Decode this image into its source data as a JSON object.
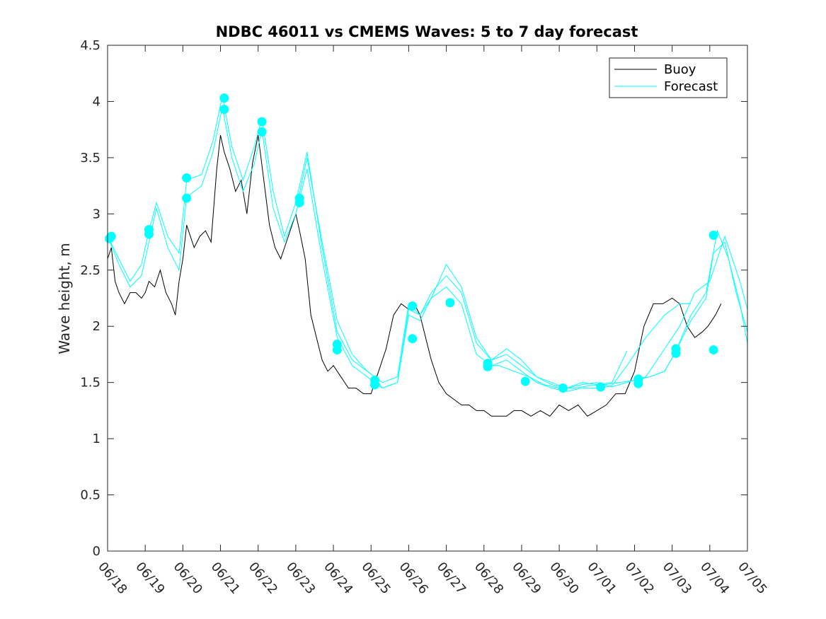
{
  "chart_data": {
    "type": "line",
    "title": "NDBC 46011 vs CMEMS Waves: 5 to 7 day forecast",
    "xlabel": "",
    "ylabel": "Wave height, m",
    "ylim": [
      0,
      4.5
    ],
    "xlim": [
      "06/18",
      "07/05"
    ],
    "x_ticks": [
      "06/18",
      "06/19",
      "06/20",
      "06/21",
      "06/22",
      "06/23",
      "06/24",
      "06/25",
      "06/26",
      "06/27",
      "06/28",
      "06/29",
      "06/30",
      "07/01",
      "07/02",
      "07/03",
      "07/04",
      "07/05"
    ],
    "y_ticks": [
      "0",
      "0.5",
      "1",
      "1.5",
      "2",
      "2.5",
      "3",
      "3.5",
      "4",
      "4.5"
    ],
    "legend": {
      "placement": "top-right",
      "entries": [
        "Buoy",
        "Forecast"
      ]
    },
    "colors": {
      "buoy": "#000000",
      "forecast": "#00ffff",
      "marker": "#00ffff",
      "axis": "#262626"
    },
    "series": [
      {
        "name": "Buoy",
        "x_day_index": [
          0,
          0.1,
          0.2,
          0.3,
          0.45,
          0.6,
          0.75,
          0.9,
          1.0,
          1.1,
          1.25,
          1.4,
          1.55,
          1.7,
          1.8,
          1.9,
          2.0,
          2.1,
          2.3,
          2.45,
          2.6,
          2.75,
          2.9,
          3.0,
          3.1,
          3.25,
          3.4,
          3.55,
          3.7,
          3.85,
          4.0,
          4.15,
          4.3,
          4.45,
          4.6,
          4.75,
          4.9,
          5.0,
          5.1,
          5.25,
          5.4,
          5.55,
          5.7,
          5.85,
          6.0,
          6.2,
          6.4,
          6.6,
          6.8,
          7.0,
          7.2,
          7.4,
          7.6,
          7.8,
          8.0,
          8.15,
          8.3,
          8.45,
          8.6,
          8.8,
          9.0,
          9.2,
          9.4,
          9.6,
          9.8,
          10.0,
          10.2,
          10.4,
          10.6,
          10.8,
          11.0,
          11.25,
          11.5,
          11.75,
          12.0,
          12.25,
          12.5,
          12.75,
          13.0,
          13.25,
          13.5,
          13.75,
          14.0,
          14.25,
          14.5,
          14.75,
          15.0,
          15.2,
          15.4,
          15.6,
          15.8,
          15.95,
          16.05,
          16.15,
          16.3
        ],
        "values": [
          2.6,
          2.7,
          2.4,
          2.3,
          2.2,
          2.3,
          2.3,
          2.25,
          2.3,
          2.4,
          2.35,
          2.5,
          2.3,
          2.2,
          2.1,
          2.4,
          2.6,
          2.9,
          2.7,
          2.8,
          2.85,
          2.75,
          3.4,
          3.7,
          3.55,
          3.4,
          3.2,
          3.3,
          3.0,
          3.45,
          3.7,
          3.3,
          2.9,
          2.7,
          2.6,
          2.75,
          2.9,
          3.0,
          2.85,
          2.6,
          2.1,
          1.9,
          1.7,
          1.6,
          1.65,
          1.55,
          1.45,
          1.45,
          1.4,
          1.4,
          1.6,
          1.8,
          2.1,
          2.2,
          2.15,
          2.2,
          2.1,
          1.9,
          1.7,
          1.5,
          1.4,
          1.35,
          1.3,
          1.3,
          1.25,
          1.25,
          1.2,
          1.2,
          1.2,
          1.25,
          1.25,
          1.2,
          1.25,
          1.2,
          1.3,
          1.25,
          1.3,
          1.2,
          1.25,
          1.3,
          1.4,
          1.4,
          1.6,
          2.0,
          2.2,
          2.2,
          2.25,
          2.2,
          2.0,
          1.9,
          1.95,
          2.0,
          2.05,
          2.1,
          2.2
        ]
      },
      {
        "name": "Forecast",
        "runs": [
          {
            "x_day_index": [
              0,
              0.3,
              0.6,
              0.9,
              1.1,
              1.3,
              1.6,
              1.9,
              2.1,
              2.5,
              2.8,
              3.05,
              3.3,
              3.6,
              3.9,
              4.1,
              4.4,
              4.7,
              5.0,
              5.3,
              5.7,
              6.1,
              6.5,
              6.9,
              7.3,
              7.7,
              8.0,
              8.3,
              8.6,
              9.0,
              9.4,
              9.8,
              10.2,
              10.6,
              11.0,
              11.4,
              11.8,
              12.2,
              12.6,
              13.0,
              13.4,
              13.8
            ],
            "values": [
              2.8,
              2.6,
              2.4,
              2.55,
              2.85,
              3.1,
              2.8,
              2.65,
              3.3,
              3.35,
              3.65,
              4.05,
              3.6,
              3.3,
              3.6,
              3.85,
              3.2,
              2.8,
              3.1,
              3.55,
              2.7,
              1.95,
              1.7,
              1.6,
              1.5,
              1.55,
              2.2,
              2.1,
              2.3,
              2.45,
              2.3,
              1.85,
              1.7,
              1.75,
              1.65,
              1.55,
              1.5,
              1.45,
              1.5,
              1.48,
              1.5,
              1.78
            ]
          },
          {
            "x_day_index": [
              0,
              0.3,
              0.6,
              0.9,
              1.1,
              1.3,
              1.6,
              1.9,
              2.1,
              2.5,
              2.8,
              3.05,
              3.3,
              3.6,
              3.9,
              4.1,
              4.4,
              4.7,
              5.0,
              5.3,
              5.7,
              6.1,
              6.5,
              6.9,
              7.3,
              7.7,
              8.0,
              8.3,
              8.6,
              9.0,
              9.4,
              9.8,
              10.2,
              10.6,
              11.0,
              11.4,
              11.8,
              12.2,
              12.6,
              13.0,
              13.4,
              13.8,
              14.3,
              14.8,
              15.2,
              15.5
            ],
            "values": [
              2.8,
              2.55,
              2.35,
              2.45,
              2.75,
              3.05,
              2.7,
              2.5,
              3.15,
              3.25,
              3.55,
              3.95,
              3.5,
              3.2,
              3.45,
              3.75,
              3.05,
              2.75,
              3.0,
              3.4,
              2.6,
              1.9,
              1.65,
              1.55,
              1.45,
              1.5,
              2.1,
              2.05,
              2.25,
              2.35,
              2.2,
              1.75,
              1.65,
              1.7,
              1.6,
              1.5,
              1.45,
              1.42,
              1.45,
              1.45,
              1.47,
              1.65,
              1.9,
              2.1,
              2.2,
              2.2
            ]
          },
          {
            "x_day_index": [
              5.05,
              5.3,
              5.7,
              6.1,
              6.5,
              6.9,
              7.1,
              7.3,
              7.7,
              8.0,
              8.3,
              8.6,
              9.0,
              9.4,
              9.8,
              10.2,
              10.6,
              11.0,
              11.4,
              11.8,
              12.2,
              12.6,
              13.0,
              13.4,
              13.8,
              14.3,
              14.8,
              15.2,
              15.6,
              16.0,
              16.4,
              16.8,
              17.0
            ],
            "values": [
              3.1,
              3.5,
              2.75,
              2.05,
              1.75,
              1.6,
              1.55,
              1.45,
              1.5,
              2.15,
              2.1,
              2.25,
              2.55,
              2.35,
              1.9,
              1.7,
              1.8,
              1.7,
              1.55,
              1.48,
              1.45,
              1.48,
              1.5,
              1.46,
              1.5,
              1.55,
              1.8,
              2.0,
              2.3,
              2.4,
              2.8,
              2.4,
              2.15
            ]
          },
          {
            "x_day_index": [
              10.05,
              10.4,
              10.8,
              11.2,
              11.6,
              12.0,
              12.4,
              12.8,
              13.2,
              13.6,
              14.0,
              14.4,
              14.8,
              15.1,
              15.5,
              15.9,
              16.2,
              16.5,
              16.8,
              17.0
            ],
            "values": [
              1.65,
              1.65,
              1.6,
              1.55,
              1.48,
              1.45,
              1.45,
              1.47,
              1.48,
              1.5,
              1.52,
              1.55,
              1.6,
              1.78,
              2.1,
              2.3,
              2.85,
              2.6,
              2.2,
              1.85
            ]
          },
          {
            "x_day_index": [
              14.1,
              14.4,
              14.8,
              15.1,
              15.5,
              15.9,
              16.1,
              16.4,
              16.7,
              17.0
            ],
            "values": [
              1.53,
              1.55,
              1.6,
              1.78,
              2.05,
              2.25,
              2.65,
              2.75,
              2.3,
              1.95
            ]
          }
        ],
        "markers": {
          "x_day_index": [
            0.05,
            0.1,
            1.1,
            1.1,
            2.1,
            2.1,
            3.1,
            3.1,
            4.1,
            4.1,
            5.1,
            5.1,
            6.1,
            6.1,
            7.1,
            7.1,
            8.1,
            8.1,
            9.1,
            10.1,
            10.1,
            11.1,
            12.1,
            13.1,
            14.1,
            14.1,
            15.1,
            15.1,
            16.1,
            16.1
          ],
          "values": [
            2.78,
            2.8,
            2.86,
            2.82,
            3.32,
            3.14,
            4.03,
            3.93,
            3.82,
            3.73,
            3.14,
            3.1,
            1.84,
            1.79,
            1.52,
            1.48,
            2.18,
            1.89,
            2.21,
            1.67,
            1.64,
            1.51,
            1.45,
            1.46,
            1.53,
            1.49,
            1.8,
            1.76,
            2.81,
            1.79
          ]
        }
      }
    ]
  }
}
